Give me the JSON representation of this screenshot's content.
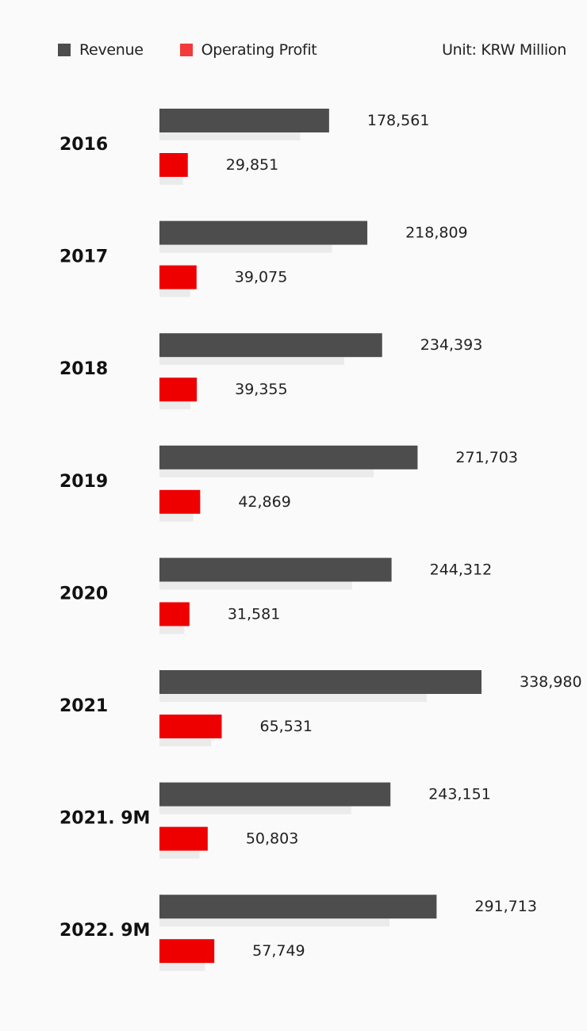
{
  "legend": {
    "revenue": "Revenue",
    "operating_profit": "Operating Profit"
  },
  "unit_label": "Unit: KRW Million",
  "colors": {
    "revenue": "#4d4d4d",
    "operating_profit": "#ee0000",
    "legend_operating_profit": "#f23a3a",
    "shadow": "#ebebeb",
    "background": "#fafafa"
  },
  "chart_data": {
    "type": "bar",
    "orientation": "horizontal",
    "categories": [
      "2016",
      "2017",
      "2018",
      "2019",
      "2020",
      "2021",
      "2021. 9M",
      "2022. 9M"
    ],
    "series": [
      {
        "name": "Revenue",
        "values": [
          178561,
          218809,
          234393,
          271703,
          244312,
          338980,
          243151,
          291713
        ],
        "labels": [
          "178,561",
          "218,809",
          "234,393",
          "271,703",
          "244,312",
          "338,980",
          "243,151",
          "291,713"
        ]
      },
      {
        "name": "Operating Profit",
        "values": [
          29851,
          39075,
          39355,
          42869,
          31581,
          65531,
          50803,
          57749
        ],
        "labels": [
          "29,851",
          "39,075",
          "39,355",
          "42,869",
          "31,581",
          "65,531",
          "50,803",
          "57,749"
        ]
      }
    ],
    "title": "",
    "xlabel": "",
    "ylabel": "",
    "grid": false,
    "legend_position": "top-left"
  }
}
